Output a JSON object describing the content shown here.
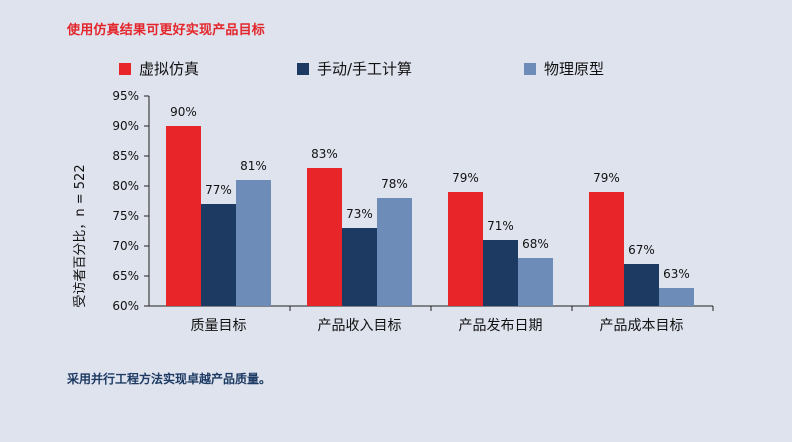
{
  "header": {
    "title": "使用仿真结果可更好实现产品目标"
  },
  "footer": {
    "text": "采用并行工程方法实现卓越产品质量。"
  },
  "chart_data": {
    "type": "bar",
    "ylabel": "受访者百分比，n = 522",
    "xlabel": "",
    "ylim": [
      60,
      95
    ],
    "yticks": [
      60,
      65,
      70,
      75,
      80,
      85,
      90,
      95
    ],
    "ytick_labels": [
      "60%",
      "65%",
      "70%",
      "75%",
      "80%",
      "85%",
      "90%",
      "95%"
    ],
    "categories": [
      "质量目标",
      "产品收入目标",
      "产品发布日期",
      "产品成本目标"
    ],
    "series": [
      {
        "name": "虚拟仿真",
        "color": "#e8262a",
        "values": [
          90,
          83,
          79,
          79
        ],
        "labels": [
          "90%",
          "83%",
          "79%",
          "79%"
        ]
      },
      {
        "name": "手动/手工计算",
        "color": "#1d3a63",
        "values": [
          77,
          73,
          71,
          67
        ],
        "labels": [
          "77%",
          "73%",
          "71%",
          "67%"
        ]
      },
      {
        "name": "物理原型",
        "color": "#6d8cb8",
        "values": [
          81,
          78,
          68,
          63
        ],
        "labels": [
          "81%",
          "78%",
          "68%",
          "63%"
        ]
      }
    ],
    "legend_position": "top-left",
    "grid": false
  }
}
